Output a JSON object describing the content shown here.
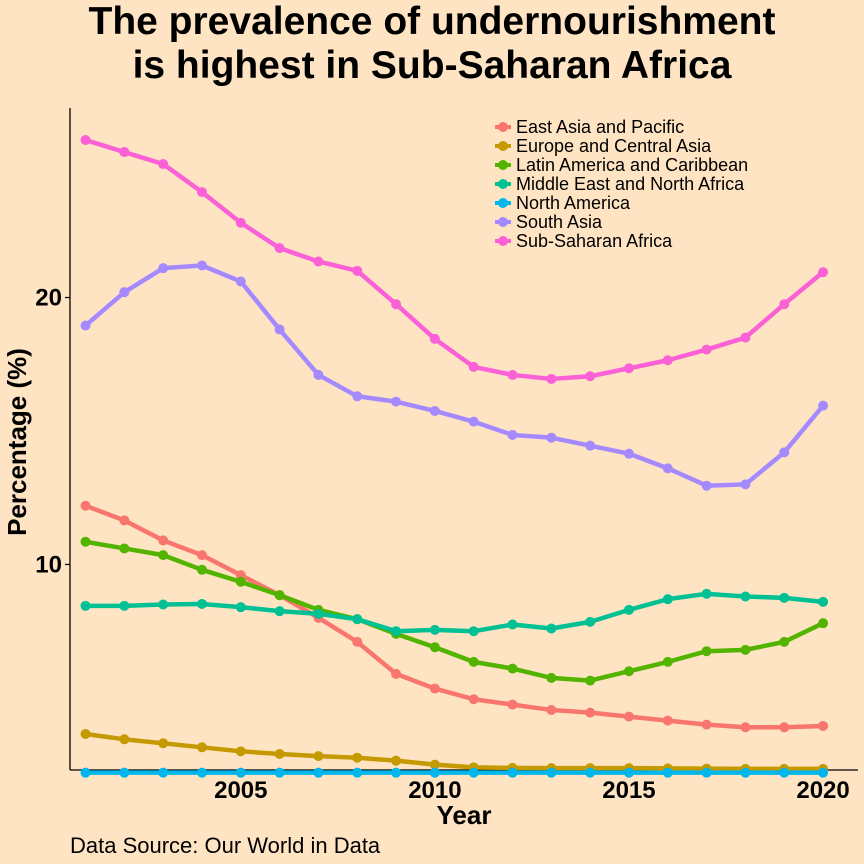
{
  "chart_data": {
    "type": "line",
    "title_lines": [
      "The prevalence of undernourishment",
      "is highest in Sub-Saharan Africa"
    ],
    "xlabel": "Year",
    "ylabel": "Percentage (%)",
    "caption": "Data Source: Our World in Data",
    "xlim": [
      2000.6,
      2020.9
    ],
    "ylim": [
      2.3,
      27.1
    ],
    "x_ticks": [
      2005,
      2010,
      2015,
      2020
    ],
    "y_ticks": [
      10,
      20
    ],
    "grid": false,
    "legend_position": "top-right",
    "x": [
      2001,
      2002,
      2003,
      2004,
      2005,
      2006,
      2007,
      2008,
      2009,
      2010,
      2011,
      2012,
      2013,
      2014,
      2015,
      2016,
      2017,
      2018,
      2019,
      2020
    ],
    "series": [
      {
        "name": "East Asia and Pacific",
        "color": "#F8766D",
        "values": [
          12.2,
          11.65,
          10.9,
          10.35,
          9.6,
          8.85,
          8.0,
          7.1,
          5.9,
          5.35,
          4.95,
          4.75,
          4.55,
          4.45,
          4.3,
          4.15,
          4.0,
          3.9,
          3.9,
          3.95
        ]
      },
      {
        "name": "Europe and Central Asia",
        "color": "#C49A00",
        "values": [
          3.65,
          3.45,
          3.3,
          3.15,
          3.0,
          2.9,
          2.82,
          2.76,
          2.65,
          2.5,
          2.4,
          2.38,
          2.37,
          2.37,
          2.37,
          2.36,
          2.35,
          2.34,
          2.34,
          2.34
        ]
      },
      {
        "name": "Latin America and Caribbean",
        "color": "#53B400",
        "values": [
          10.85,
          10.6,
          10.35,
          9.8,
          9.35,
          8.85,
          8.3,
          7.95,
          7.4,
          6.9,
          6.35,
          6.1,
          5.75,
          5.65,
          6.0,
          6.35,
          6.75,
          6.8,
          7.1,
          7.8
        ]
      },
      {
        "name": "Middle East and North Africa",
        "color": "#00C094",
        "values": [
          8.45,
          8.45,
          8.5,
          8.52,
          8.4,
          8.25,
          8.15,
          7.95,
          7.5,
          7.55,
          7.5,
          7.75,
          7.6,
          7.85,
          8.3,
          8.7,
          8.9,
          8.8,
          8.75,
          8.6
        ]
      },
      {
        "name": "North America",
        "color": "#00B6EB",
        "values": [
          2.2,
          2.2,
          2.2,
          2.2,
          2.2,
          2.2,
          2.2,
          2.2,
          2.2,
          2.2,
          2.2,
          2.2,
          2.2,
          2.2,
          2.2,
          2.2,
          2.2,
          2.2,
          2.2,
          2.2
        ]
      },
      {
        "name": "South Asia",
        "color": "#A58AFF",
        "values": [
          18.95,
          20.2,
          21.1,
          21.2,
          20.6,
          18.8,
          17.1,
          16.3,
          16.1,
          15.75,
          15.35,
          14.85,
          14.75,
          14.45,
          14.15,
          13.6,
          12.95,
          13.0,
          14.2,
          15.95
        ]
      },
      {
        "name": "Sub-Saharan Africa",
        "color": "#FB61D7",
        "values": [
          25.9,
          25.45,
          25.0,
          23.95,
          22.8,
          21.85,
          21.35,
          21.0,
          19.75,
          18.45,
          17.4,
          17.1,
          16.95,
          17.05,
          17.35,
          17.65,
          18.05,
          18.5,
          19.75,
          20.95
        ]
      }
    ]
  }
}
